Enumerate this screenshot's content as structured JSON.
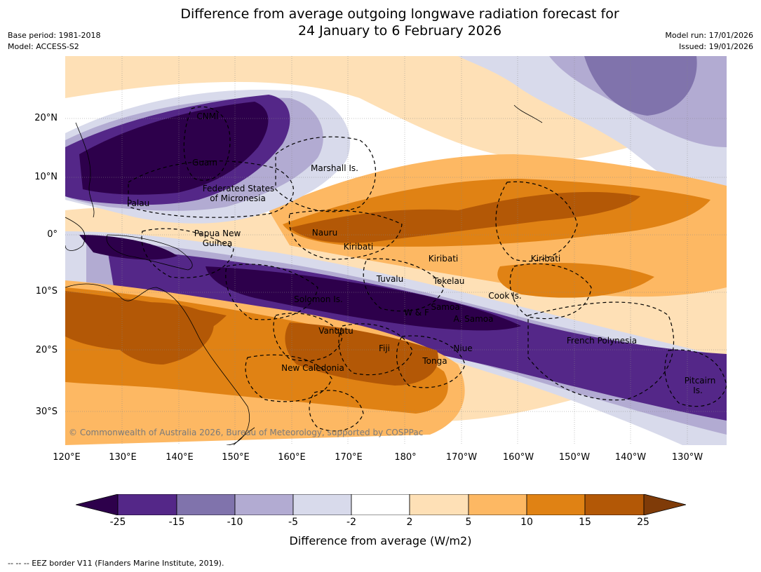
{
  "title_line1": "Difference from average outgoing longwave radiation forecast for",
  "title_line2": "24 January to 6 February 2026",
  "meta_left": [
    "Base period: 1981-2018",
    "Model: ACCESS-S2"
  ],
  "meta_right": [
    "Model run: 17/01/2026",
    "Issued: 19/01/2026"
  ],
  "lat_labels": [
    "20°N",
    "10°N",
    "0°",
    "10°S",
    "20°S",
    "30°S"
  ],
  "lon_labels": [
    "120°E",
    "130°E",
    "140°E",
    "150°E",
    "160°E",
    "170°E",
    "180°",
    "170°W",
    "160°W",
    "150°W",
    "140°W",
    "130°W"
  ],
  "places": [
    {
      "name": "CNMI"
    },
    {
      "name": "Guam"
    },
    {
      "name": "Marshall Is."
    },
    {
      "name": "Federated States"
    },
    {
      "name": "of Micronesia"
    },
    {
      "name": "Palau"
    },
    {
      "name": "Papua New"
    },
    {
      "name": "Guinea"
    },
    {
      "name": "Nauru"
    },
    {
      "name": "Kiribati"
    },
    {
      "name": "Kiribati"
    },
    {
      "name": "Kiribati"
    },
    {
      "name": "Tuvalu"
    },
    {
      "name": "Tokelau"
    },
    {
      "name": "Cook Is."
    },
    {
      "name": "Solomon Is."
    },
    {
      "name": "Samoa"
    },
    {
      "name": "W & F"
    },
    {
      "name": "A. Samoa"
    },
    {
      "name": "Vanuatu"
    },
    {
      "name": "Fiji"
    },
    {
      "name": "Niue"
    },
    {
      "name": "French Polynesia"
    },
    {
      "name": "Tonga"
    },
    {
      "name": "New Caledonia"
    },
    {
      "name": "Pitcairn"
    },
    {
      "name": "Is."
    }
  ],
  "copyright": "© Commonwealth of Australia 2026, Bureau of Meteorology, supported by COSPPac",
  "colorbar": {
    "ticks": [
      "-25",
      "-15",
      "-10",
      "-5",
      "-2",
      "2",
      "5",
      "10",
      "15",
      "25"
    ],
    "colors": [
      "#2d004b",
      "#542788",
      "#8073ac",
      "#b2abd2",
      "#d8daeb",
      "#ffffff",
      "#fee0b6",
      "#fdb863",
      "#e08214",
      "#b35806",
      "#7f3b08"
    ],
    "label": "Difference from average (W/m2)"
  },
  "footnote": "-- -- -- EEZ border V11 (Flanders Marine Institute, 2019)."
}
